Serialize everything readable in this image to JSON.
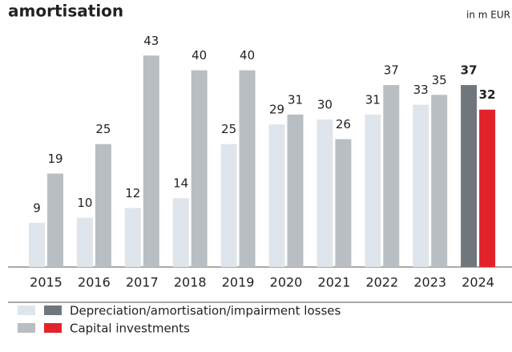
{
  "chart_data": {
    "type": "bar",
    "title": "amortisation",
    "unit": "in m EUR",
    "categories": [
      "2015",
      "2016",
      "2017",
      "2018",
      "2019",
      "2020",
      "2021",
      "2022",
      "2023",
      "2024"
    ],
    "ylim": [
      0,
      45
    ],
    "series": [
      {
        "name": "Depreciation/amortisation/impairment losses",
        "values": [
          9,
          10,
          12,
          14,
          25,
          29,
          30,
          31,
          33,
          37
        ],
        "colors": [
          "#dfe5ec",
          "#dfe5ec",
          "#dfe5ec",
          "#dfe5ec",
          "#dfe5ec",
          "#dfe5ec",
          "#dfe5ec",
          "#dfe5ec",
          "#dfe5ec",
          "#6f777d"
        ]
      },
      {
        "name": "Capital investments",
        "values": [
          19,
          25,
          43,
          40,
          40,
          31,
          26,
          37,
          35,
          32
        ],
        "colors": [
          "#b9bec3",
          "#b9bec3",
          "#b9bec3",
          "#b9bec3",
          "#b9bec3",
          "#b9bec3",
          "#b9bec3",
          "#b9bec3",
          "#b9bec3",
          "#e3232a"
        ]
      }
    ]
  }
}
